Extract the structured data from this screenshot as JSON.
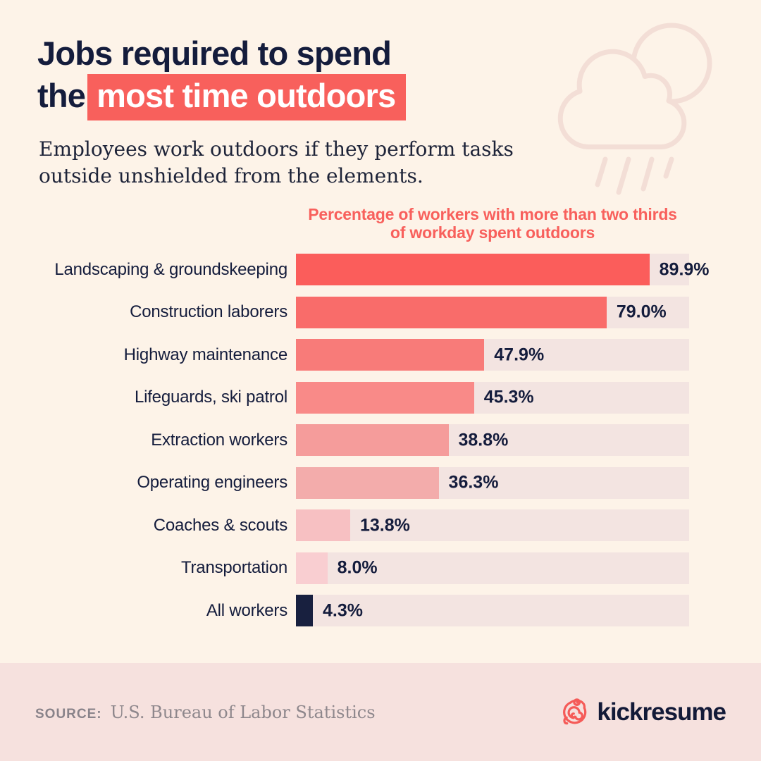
{
  "page": {
    "background_color": "#fdf3e8",
    "accent_color": "#f8605c",
    "navy_color": "#141c3c",
    "footer_background_color": "#f6e1de",
    "cloud_outline_color": "#f3ded6"
  },
  "header": {
    "title_line1": "Jobs required to spend",
    "title_line2_prefix": "the",
    "title_line2_highlight": "most time outdoors",
    "subtitle_line1": "Employees work outdoors if they perform tasks",
    "subtitle_line2": "outside unshielded from the elements."
  },
  "chart_data": {
    "type": "bar",
    "orientation": "horizontal",
    "title": "Percentage of workers with more than two thirds of workday spent outdoors",
    "title_lines": [
      "Percentage of workers with more than two thirds",
      "of workday spent outdoors"
    ],
    "categories": [
      "Landscaping & groundskeeping",
      "Construction laborers",
      "Highway maintenance",
      "Lifeguards, ski patrol",
      "Extraction workers",
      "Operating engineers",
      "Coaches & scouts",
      "Transportation",
      "All workers"
    ],
    "values": [
      89.9,
      79.0,
      47.9,
      45.3,
      38.8,
      36.3,
      13.8,
      8.0,
      4.3
    ],
    "value_labels": [
      "89.9%",
      "79.0%",
      "47.9%",
      "45.3%",
      "38.8%",
      "36.3%",
      "13.8%",
      "8.0%",
      "4.3%"
    ],
    "bar_colors": [
      "#fb5d5b",
      "#f96c6a",
      "#f87b79",
      "#f98a88",
      "#f59c9b",
      "#f3acab",
      "#f7c0c2",
      "#f9ced1",
      "#18203f"
    ],
    "track_color": "#f3e4e1",
    "xlim": [
      0,
      100
    ],
    "unit": "%",
    "grid": false,
    "legend": false
  },
  "footer": {
    "source_label": "SOURCE:",
    "source_value": "U.S. Bureau of Labor Statistics",
    "brand_name": "kickresume"
  },
  "icons": {
    "cloud": "cloud-rain-icon",
    "brand_mark": "kickresume-chameleon-icon"
  }
}
